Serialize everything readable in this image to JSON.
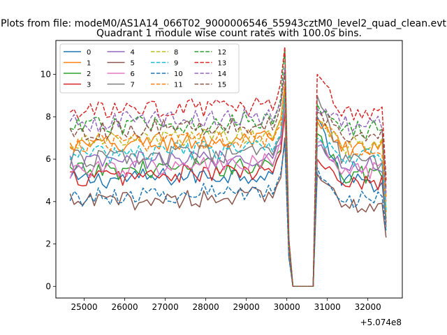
{
  "figure": {
    "suptitle": "Plots from file: modeM0/AS1A14_066T02_9000006546_55943cztM0_level2_quad_clean.evt"
  },
  "chart_data": {
    "type": "line",
    "title": "Quadrant 1 module wise count rates with 100.0s bins.",
    "xlabel": "",
    "ylabel": "",
    "x_offset_label": "+5.074e8",
    "xlim": [
      24300,
      32850
    ],
    "ylim": [
      -0.55,
      11.6
    ],
    "xticks": [
      25000,
      26000,
      27000,
      28000,
      29000,
      30000,
      31000,
      32000
    ],
    "yticks": [
      0,
      2,
      4,
      6,
      8,
      10
    ],
    "legend_position": "upper-left",
    "legend_columns": 4,
    "x": {
      "start": 24650,
      "step": 100,
      "count": 79,
      "gap_start": 30150,
      "gap_end": 30650,
      "spike_x": 29950,
      "recover_x": 30750,
      "decay_end_x": 31350,
      "final_x": 32450
    },
    "series": [
      {
        "name": "0",
        "color": "#1f77b4",
        "style": "solid",
        "base": 5.0,
        "spike": 9.0,
        "recover": 8.0,
        "last": 3.0
      },
      {
        "name": "1",
        "color": "#ff7f0e",
        "style": "solid",
        "base": 6.6,
        "spike": 9.5,
        "recover": 7.8,
        "last": 3.5
      },
      {
        "name": "2",
        "color": "#2ca02c",
        "style": "solid",
        "base": 5.4,
        "spike": 8.5,
        "recover": 7.2,
        "last": 3.2
      },
      {
        "name": "3",
        "color": "#d62728",
        "style": "solid",
        "base": 5.1,
        "spike": 8.2,
        "recover": 6.0,
        "last": 3.0
      },
      {
        "name": "4",
        "color": "#9467bd",
        "style": "solid",
        "base": 5.8,
        "spike": 8.8,
        "recover": 6.6,
        "last": 4.6
      },
      {
        "name": "5",
        "color": "#8c564b",
        "style": "solid",
        "base": 3.95,
        "spike": 7.0,
        "recover": 5.3,
        "last": 2.3
      },
      {
        "name": "6",
        "color": "#e377c2",
        "style": "solid",
        "base": 5.5,
        "spike": 8.6,
        "recover": 6.8,
        "last": 4.0
      },
      {
        "name": "7",
        "color": "#7f7f7f",
        "style": "solid",
        "base": 6.0,
        "spike": 9.0,
        "recover": 9.0,
        "last": 2.8
      },
      {
        "name": "8",
        "color": "#bcbd22",
        "style": "dashed",
        "base": 6.8,
        "spike": 9.2,
        "recover": 7.6,
        "last": 3.6
      },
      {
        "name": "9",
        "color": "#17becf",
        "style": "dashed",
        "base": 6.2,
        "spike": 9.0,
        "recover": 7.0,
        "last": 3.6
      },
      {
        "name": "10",
        "color": "#1f77b4",
        "style": "dashed",
        "base": 4.2,
        "spike": 6.8,
        "recover": 5.6,
        "last": 2.6
      },
      {
        "name": "11",
        "color": "#ff7f0e",
        "style": "dashed",
        "base": 6.7,
        "spike": 9.6,
        "recover": 7.9,
        "last": 4.2
      },
      {
        "name": "12",
        "color": "#2ca02c",
        "style": "dashed",
        "base": 7.5,
        "spike": 11.2,
        "recover": 8.6,
        "last": 5.2
      },
      {
        "name": "13",
        "color": "#d62728",
        "style": "dashed",
        "base": 8.2,
        "spike": 11.3,
        "recover": 10.0,
        "last": 5.0
      },
      {
        "name": "14",
        "color": "#9467bd",
        "style": "dashed",
        "base": 7.7,
        "spike": 10.3,
        "recover": 8.4,
        "last": 4.4
      },
      {
        "name": "15",
        "color": "#8c564b",
        "style": "dashed",
        "base": 7.3,
        "spike": 10.1,
        "recover": 8.2,
        "last": 4.6
      }
    ]
  }
}
